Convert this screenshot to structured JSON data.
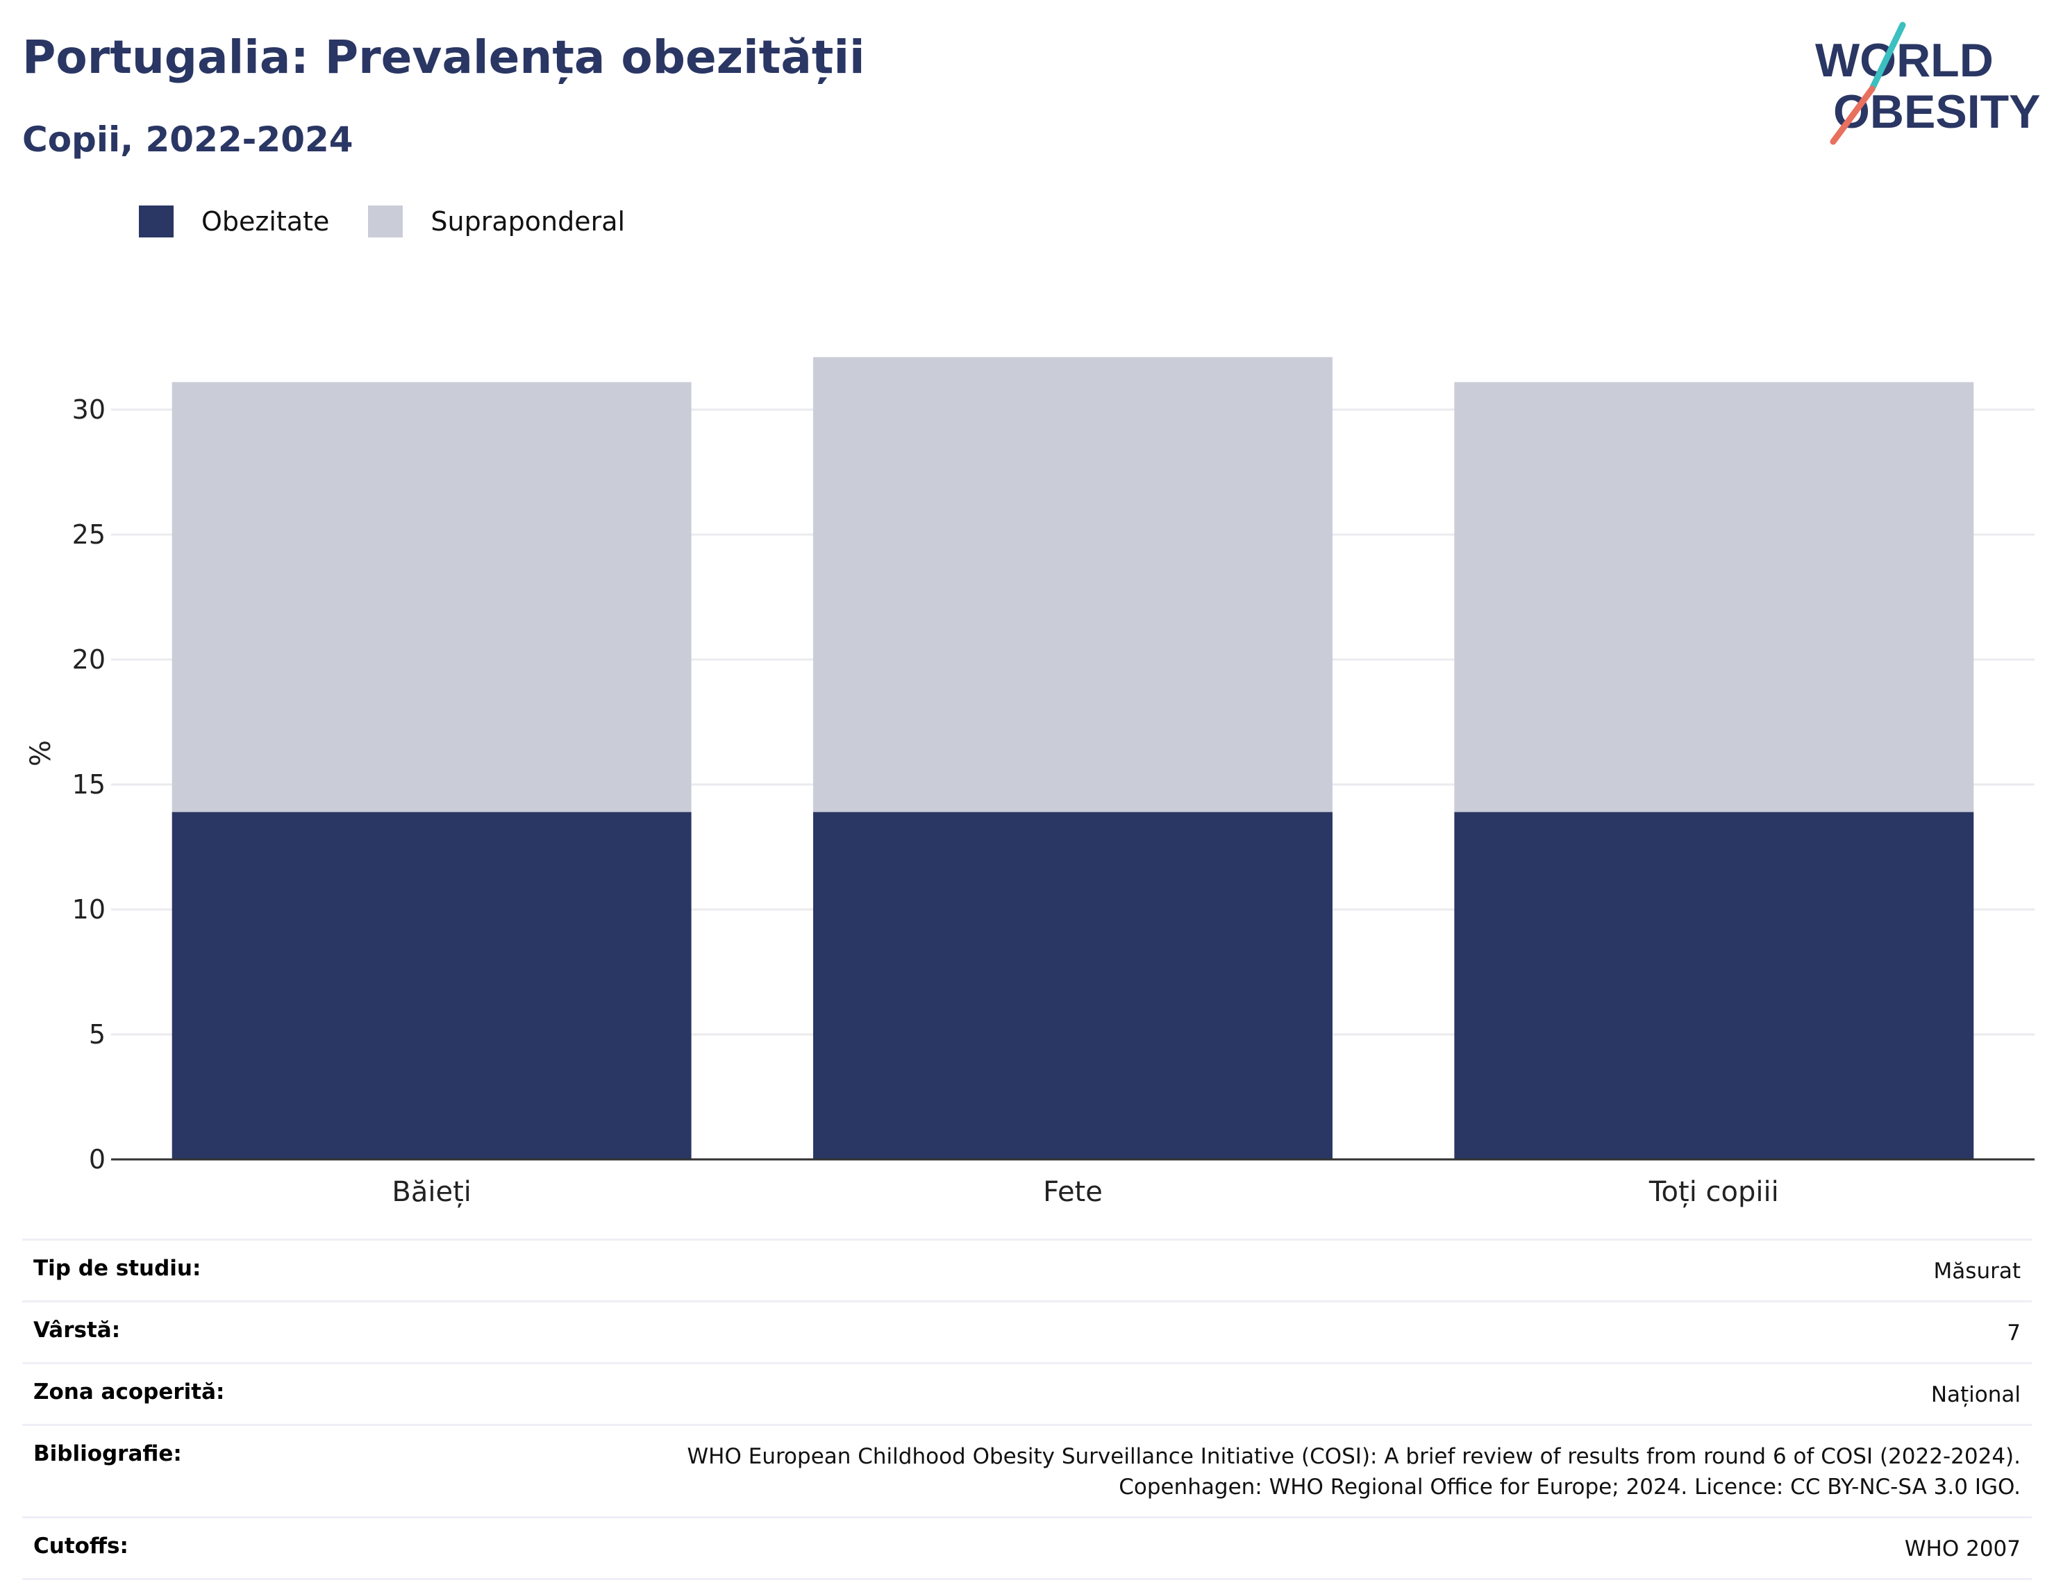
{
  "header": {
    "title": "Portugalia: Prevalența obezității",
    "subtitle": "Copii, 2022-2024"
  },
  "logo": {
    "line1": "WORLD",
    "line2": "OBESITY"
  },
  "colors": {
    "obesity": "#2a3663",
    "overweight": "#cacdd8",
    "title": "#2a3663",
    "grid": "#ebebef",
    "axis": "#333333",
    "logo_teal": "#3bbfc0",
    "logo_coral": "#e8705f"
  },
  "legend": [
    {
      "label": "Obezitate",
      "color": "#2a3663"
    },
    {
      "label": "Supraponderal",
      "color": "#cacdd8"
    }
  ],
  "chart_data": {
    "type": "bar",
    "stacked": true,
    "categories": [
      "Băieți",
      "Fete",
      "Toți copiii"
    ],
    "series": [
      {
        "name": "Obezitate",
        "values": [
          13.9,
          13.9,
          13.9
        ]
      },
      {
        "name": "Supraponderal",
        "values": [
          17.2,
          18.2,
          17.2
        ]
      }
    ],
    "ylabel": "%",
    "xlabel": "",
    "ylim": [
      0,
      32.5
    ],
    "yticks": [
      0,
      5,
      10,
      15,
      20,
      25,
      30
    ],
    "grid": true,
    "legend_position": "top-left"
  },
  "meta": [
    {
      "key": "Tip de studiu:",
      "value": "Măsurat"
    },
    {
      "key": "Vârstă:",
      "value": "7"
    },
    {
      "key": "Zona acoperită:",
      "value": "Național"
    },
    {
      "key": "Bibliografie:",
      "value_lines": [
        "WHO European Childhood Obesity Surveillance Initiative (COSI): A brief review of results from round 6 of COSI (2022-2024).",
        "Copenhagen: WHO Regional Office for Europe; 2024. Licence: CC BY-NC-SA 3.0 IGO."
      ]
    },
    {
      "key": "Cutoffs:",
      "value": "WHO 2007"
    }
  ]
}
